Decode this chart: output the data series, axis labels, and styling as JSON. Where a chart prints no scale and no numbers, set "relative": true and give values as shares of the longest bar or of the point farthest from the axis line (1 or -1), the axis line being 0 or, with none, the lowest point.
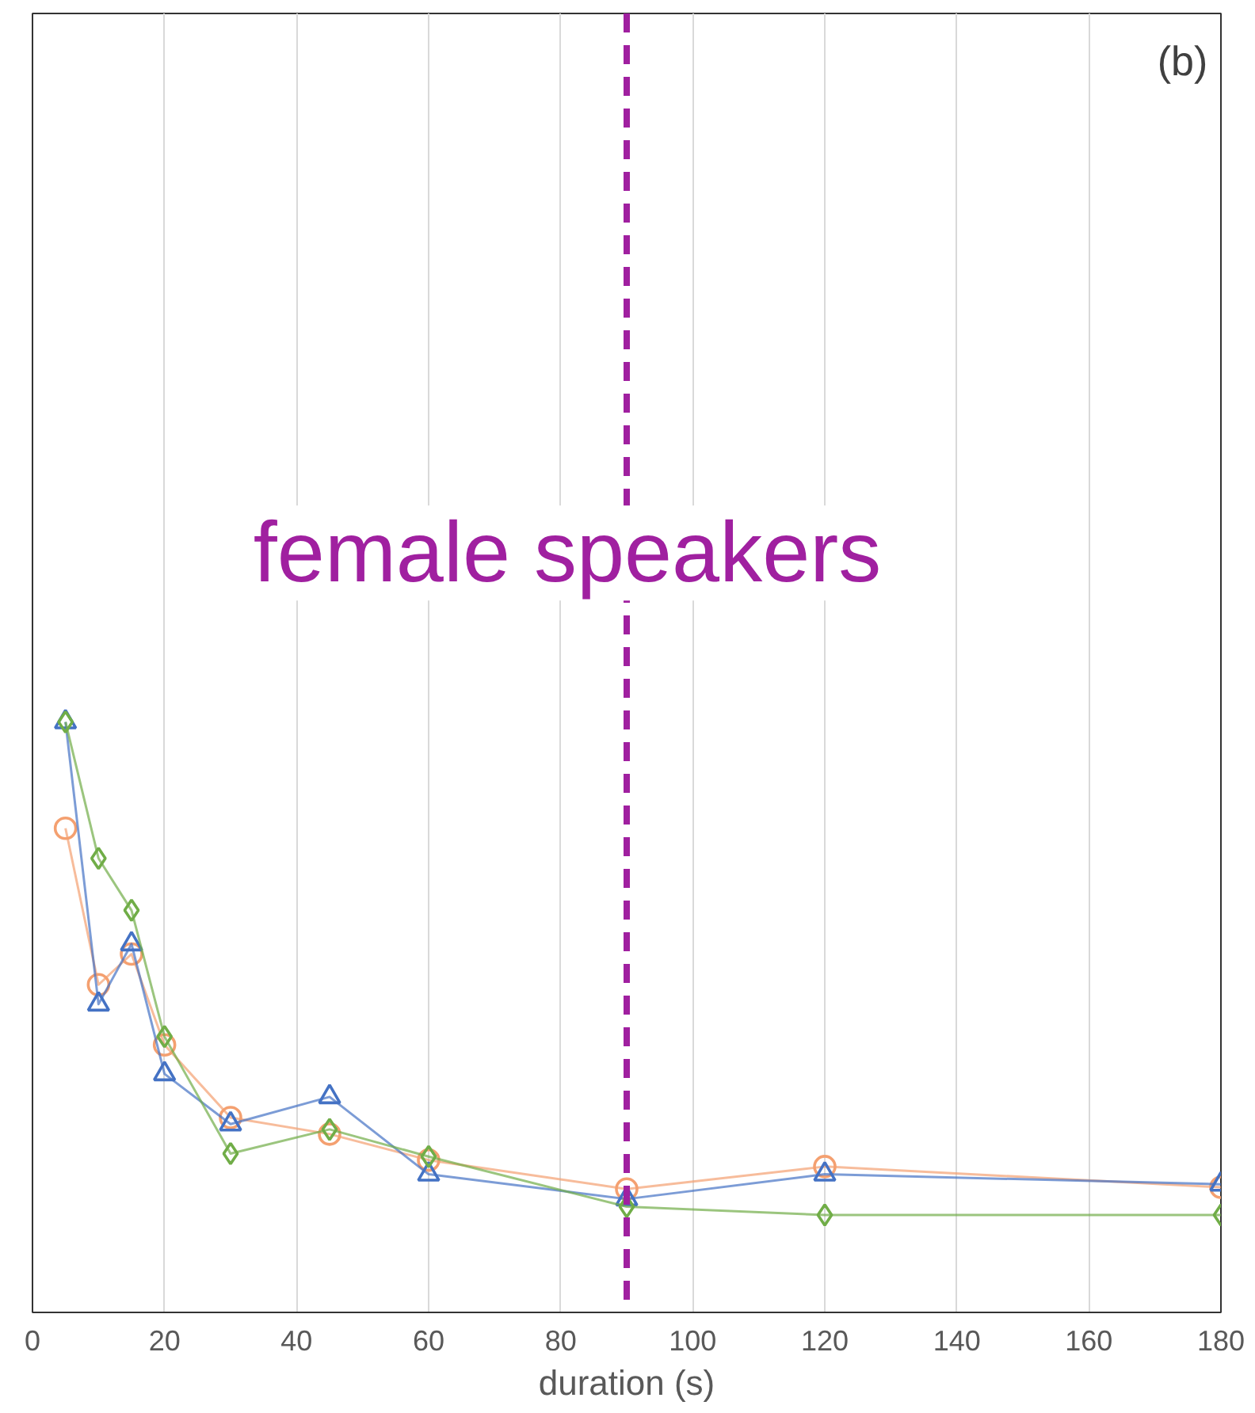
{
  "chart_data": {
    "type": "line",
    "relative": true,
    "xlabel": "duration (s)",
    "x": [
      5,
      10,
      15,
      20,
      30,
      45,
      60,
      90,
      120,
      180
    ],
    "xlim": [
      0,
      180
    ],
    "xticks": [
      0,
      20,
      40,
      60,
      80,
      100,
      120,
      140,
      160,
      180
    ],
    "series": [
      {
        "color": "#f4a070",
        "marker": "circle",
        "values": [
          0.82,
          0.555,
          0.607,
          0.453,
          0.33,
          0.302,
          0.258,
          0.209,
          0.247,
          0.212
        ]
      },
      {
        "color": "#4472c4",
        "marker": "triangle",
        "values": [
          1.0,
          0.522,
          0.624,
          0.404,
          0.319,
          0.365,
          0.234,
          0.192,
          0.234,
          0.217
        ]
      },
      {
        "color": "#70ad47",
        "marker": "diamond",
        "values": [
          1.0,
          0.769,
          0.681,
          0.467,
          0.269,
          0.31,
          0.264,
          0.179,
          0.165,
          0.165
        ]
      }
    ],
    "ref_lines": [
      {
        "axis": "x",
        "value": 90,
        "color": "#a020a0",
        "line_style": "dashed"
      }
    ],
    "annotations": [
      "(b)",
      "female speakers"
    ],
    "grid": "x"
  }
}
